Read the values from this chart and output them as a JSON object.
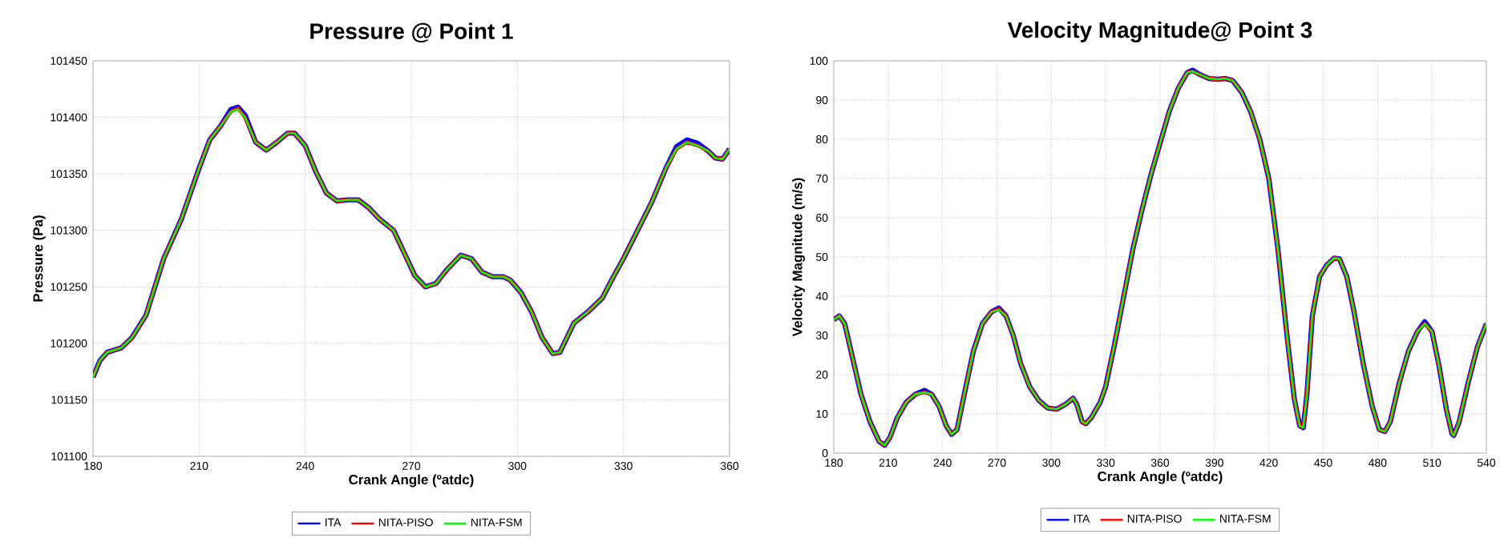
{
  "chart_data": [
    {
      "type": "line",
      "title": "Pressure @ Point 1",
      "xlabel": "Crank Angle (ºatdc)",
      "ylabel": "Pressure (Pa)",
      "x": [
        180,
        182,
        184,
        188,
        191,
        195,
        200,
        205,
        210,
        213,
        216,
        219,
        221,
        223,
        226,
        229,
        232,
        235,
        237,
        240,
        243,
        246,
        249,
        252,
        255,
        258,
        261,
        265,
        268,
        271,
        274,
        277,
        280,
        284,
        287,
        290,
        293,
        296,
        298,
        301,
        304,
        307,
        310,
        312,
        314,
        316,
        320,
        324,
        327,
        330,
        334,
        338,
        342,
        345,
        348,
        351,
        354,
        356,
        358,
        360
      ],
      "series": [
        {
          "name": "ITA",
          "color": "#0000ff",
          "values": [
            101170,
            101185,
            101192,
            101196,
            101205,
            101225,
            101275,
            101310,
            101355,
            101380,
            101392,
            101407,
            101409,
            101402,
            101378,
            101371,
            101378,
            101386,
            101386,
            101375,
            101352,
            101333,
            101326,
            101327,
            101327,
            101320,
            101310,
            101300,
            101280,
            101260,
            101250,
            101253,
            101265,
            101278,
            101275,
            101263,
            101259,
            101259,
            101256,
            101245,
            101228,
            101205,
            101191,
            101192,
            101205,
            101218,
            101228,
            101240,
            101258,
            101275,
            101300,
            101325,
            101355,
            101374,
            101380,
            101377,
            101370,
            101364,
            101363,
            101372
          ]
        },
        {
          "name": "NITA-PISO",
          "color": "#ff0000",
          "values": [
            101170,
            101185,
            101192,
            101196,
            101205,
            101225,
            101275,
            101310,
            101355,
            101380,
            101392,
            101405,
            101408,
            101400,
            101378,
            101371,
            101378,
            101386,
            101386,
            101375,
            101352,
            101333,
            101326,
            101327,
            101327,
            101320,
            101310,
            101300,
            101280,
            101260,
            101250,
            101253,
            101265,
            101278,
            101275,
            101263,
            101259,
            101259,
            101256,
            101245,
            101228,
            101205,
            101191,
            101192,
            101205,
            101218,
            101228,
            101240,
            101258,
            101275,
            101300,
            101325,
            101355,
            101372,
            101378,
            101375,
            101370,
            101364,
            101363,
            101372
          ]
        },
        {
          "name": "NITA-FSM",
          "color": "#00ff00",
          "values": [
            101170,
            101185,
            101192,
            101196,
            101205,
            101225,
            101275,
            101310,
            101355,
            101380,
            101392,
            101405,
            101407,
            101400,
            101378,
            101371,
            101378,
            101386,
            101386,
            101375,
            101352,
            101333,
            101326,
            101327,
            101327,
            101320,
            101310,
            101300,
            101280,
            101260,
            101250,
            101253,
            101265,
            101278,
            101275,
            101263,
            101259,
            101259,
            101256,
            101245,
            101228,
            101205,
            101191,
            101192,
            101205,
            101218,
            101228,
            101240,
            101258,
            101275,
            101300,
            101325,
            101355,
            101372,
            101378,
            101375,
            101370,
            101364,
            101363,
            101372
          ]
        }
      ],
      "xlim": [
        180,
        360
      ],
      "xticks": [
        180,
        210,
        240,
        270,
        300,
        330,
        360
      ],
      "ylim": [
        101100,
        101450
      ],
      "yticks": [
        101100,
        101150,
        101200,
        101250,
        101300,
        101350,
        101400,
        101450
      ],
      "grid": true,
      "legend": "bottom"
    },
    {
      "type": "line",
      "title": "Velocity Magnitude@ Point 3",
      "xlabel": "Crank Angle (ºatdc)",
      "ylabel": "Velocity Magnitude (m/s)",
      "x": [
        180,
        183,
        186,
        190,
        195,
        200,
        205,
        208,
        211,
        215,
        220,
        225,
        230,
        234,
        238,
        242,
        245,
        248,
        252,
        257,
        262,
        267,
        271,
        275,
        279,
        283,
        288,
        293,
        298,
        303,
        308,
        312,
        314,
        317,
        319,
        322,
        327,
        330,
        335,
        340,
        345,
        350,
        355,
        360,
        365,
        370,
        375,
        378,
        382,
        387,
        392,
        396,
        400,
        405,
        410,
        415,
        420,
        425,
        430,
        434,
        437,
        439,
        441,
        444,
        448,
        452,
        456,
        459,
        463,
        467,
        472,
        477,
        481,
        484,
        487,
        492,
        497,
        502,
        506,
        510,
        514,
        518,
        521,
        522,
        525,
        530,
        535,
        540
      ],
      "series": [
        {
          "name": "ITA",
          "color": "#0000ff",
          "values": [
            34,
            35,
            33,
            25,
            15,
            8,
            3,
            2,
            4,
            9,
            13,
            15,
            16,
            15,
            12,
            7,
            4.8,
            6,
            15,
            26,
            33,
            36,
            37,
            35,
            30,
            23,
            17,
            13.5,
            11.5,
            11.2,
            12.5,
            14,
            12.5,
            8,
            7.5,
            9,
            13,
            17,
            28,
            40,
            52,
            62,
            71,
            79,
            87,
            93,
            97,
            97.6,
            96.5,
            95.5,
            95.3,
            95.5,
            95,
            92,
            87,
            80,
            70,
            52,
            30,
            14,
            7,
            6.5,
            15,
            35,
            45,
            48,
            49.7,
            49.5,
            45,
            36,
            23,
            12,
            6,
            5.5,
            8,
            18,
            26,
            31,
            33.5,
            31,
            22,
            11,
            5,
            4.5,
            8,
            18,
            27,
            33
          ]
        },
        {
          "name": "NITA-PISO",
          "color": "#ff0000",
          "values": [
            34,
            35,
            33,
            25,
            15,
            8,
            3,
            2,
            4,
            9,
            13,
            15,
            15.5,
            15,
            12,
            7,
            4.8,
            6,
            15,
            26,
            33,
            36,
            36.8,
            35,
            30,
            23,
            17,
            13.5,
            11.5,
            11.2,
            12.5,
            14,
            12.5,
            8,
            7.5,
            9,
            13,
            17,
            28,
            40,
            52,
            62,
            71,
            79,
            87,
            93,
            97,
            97.3,
            96.5,
            95.5,
            95.3,
            95.5,
            95,
            92,
            87,
            80,
            70,
            52,
            30,
            14,
            7,
            6.5,
            15,
            35,
            45,
            48,
            49.7,
            49.5,
            45,
            36,
            23,
            12,
            6,
            5.5,
            8,
            18,
            26,
            31,
            33,
            31,
            22,
            11,
            5,
            4.5,
            8,
            18,
            27,
            33
          ]
        },
        {
          "name": "NITA-FSM",
          "color": "#00ff00",
          "values": [
            34,
            35,
            33,
            25,
            15,
            8,
            3,
            2,
            4,
            9,
            13,
            15,
            15.5,
            15,
            12,
            7,
            4.8,
            6,
            15,
            26,
            33,
            36,
            36.5,
            35,
            30,
            23,
            17,
            13.5,
            11.5,
            11.2,
            12.5,
            14,
            12.5,
            8,
            7.5,
            9,
            13,
            17,
            28,
            40,
            52,
            62,
            71,
            79,
            87,
            93,
            97,
            97.3,
            96.5,
            95.5,
            95.3,
            95.5,
            95,
            92,
            87,
            80,
            70,
            52,
            30,
            14,
            7,
            6.5,
            15,
            35,
            45,
            48,
            49.7,
            49.5,
            45,
            36,
            23,
            12,
            6,
            5.5,
            8,
            18,
            26,
            31,
            33,
            31,
            22,
            11,
            5,
            4.5,
            8,
            18,
            27,
            33
          ]
        }
      ],
      "xlim": [
        180,
        540
      ],
      "xticks": [
        180,
        210,
        240,
        270,
        300,
        330,
        360,
        390,
        420,
        450,
        480,
        510,
        540
      ],
      "ylim": [
        0,
        100
      ],
      "yticks": [
        0,
        10,
        20,
        30,
        40,
        50,
        60,
        70,
        80,
        90,
        100
      ],
      "grid": true,
      "legend": "bottom"
    }
  ]
}
